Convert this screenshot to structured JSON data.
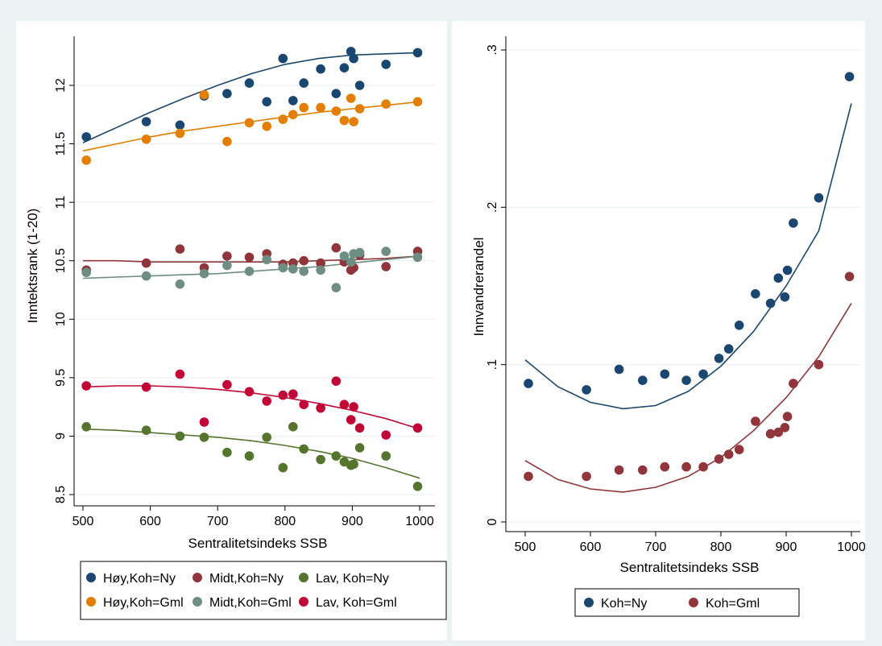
{
  "colors": {
    "hoy_ny": "#1a476f",
    "midt_ny": "#90353b",
    "lav_ny": "#55752f",
    "hoy_gml": "#e37e00",
    "midt_gml": "#6e8e84",
    "lav_gml": "#c10534",
    "share_ny": "#1a476f",
    "share_gml": "#90353b",
    "outer_bg": "#eaf2f3",
    "plot_bg": "#ffffff",
    "grid": "#eaf2f3"
  },
  "chart_data": [
    {
      "type": "scatter",
      "xlabel": "Sentralitetsindeks SSB",
      "ylabel": "Inntektsrank (1-20)",
      "xlim": [
        480,
        1020
      ],
      "ylim": [
        8.45,
        12.45
      ],
      "xticks": [
        500,
        600,
        700,
        800,
        900,
        1000
      ],
      "xtick_labels": [
        "500",
        "600",
        "700",
        "800",
        "900",
        "1000"
      ],
      "yticks": [
        8.5,
        9,
        9.5,
        10,
        10.5,
        11,
        11.5,
        12
      ],
      "ytick_labels": [
        "8.5",
        "9",
        "9.5",
        "10",
        "10.5",
        "11",
        "11.5",
        "12"
      ],
      "grid": true,
      "legend_position": "bottom",
      "legend_columns": 3,
      "series": [
        {
          "name": "Høy,Koh=Ny",
          "color_key": "hoy_ny",
          "points": [
            [
              505,
              11.56
            ],
            [
              594,
              11.69
            ],
            [
              644,
              11.66
            ],
            [
              680,
              11.91
            ],
            [
              714,
              11.93
            ],
            [
              747,
              12.02
            ],
            [
              773,
              11.86
            ],
            [
              797,
              12.23
            ],
            [
              812,
              11.87
            ],
            [
              828,
              12.02
            ],
            [
              853,
              12.14
            ],
            [
              876,
              11.93
            ],
            [
              888,
              12.15
            ],
            [
              898,
              12.29
            ],
            [
              902,
              12.23
            ],
            [
              911,
              12.0
            ],
            [
              950,
              12.18
            ],
            [
              997,
              12.28
            ]
          ],
          "fit": [
            11.51,
            11.64,
            11.77,
            11.89,
            12.0,
            12.1,
            12.18,
            12.23,
            12.26,
            12.27,
            12.28
          ]
        },
        {
          "name": "Midt,Koh=Ny",
          "color_key": "midt_ny",
          "points": [
            [
              505,
              10.42
            ],
            [
              594,
              10.48
            ],
            [
              644,
              10.6
            ],
            [
              680,
              10.44
            ],
            [
              714,
              10.54
            ],
            [
              747,
              10.53
            ],
            [
              773,
              10.56
            ],
            [
              797,
              10.47
            ],
            [
              812,
              10.48
            ],
            [
              828,
              10.5
            ],
            [
              853,
              10.48
            ],
            [
              876,
              10.61
            ],
            [
              888,
              10.49
            ],
            [
              898,
              10.42
            ],
            [
              902,
              10.44
            ],
            [
              911,
              10.55
            ],
            [
              950,
              10.45
            ],
            [
              997,
              10.58
            ]
          ],
          "fit": [
            10.5,
            10.5,
            10.49,
            10.49,
            10.49,
            10.49,
            10.49,
            10.5,
            10.51,
            10.52,
            10.54
          ]
        },
        {
          "name": "Lav, Koh=Ny",
          "color_key": "lav_ny",
          "points": [
            [
              505,
              9.08
            ],
            [
              594,
              9.05
            ],
            [
              644,
              9.0
            ],
            [
              680,
              8.99
            ],
            [
              714,
              8.86
            ],
            [
              747,
              8.83
            ],
            [
              773,
              8.99
            ],
            [
              797,
              8.73
            ],
            [
              812,
              9.08
            ],
            [
              828,
              8.89
            ],
            [
              853,
              8.8
            ],
            [
              876,
              8.83
            ],
            [
              888,
              8.78
            ],
            [
              898,
              8.75
            ],
            [
              902,
              8.76
            ],
            [
              911,
              8.9
            ],
            [
              950,
              8.83
            ],
            [
              997,
              8.57
            ]
          ],
          "fit": [
            9.06,
            9.05,
            9.03,
            9.01,
            8.99,
            8.96,
            8.92,
            8.87,
            8.81,
            8.73,
            8.64
          ]
        },
        {
          "name": "Høy,Koh=Gml",
          "color_key": "hoy_gml",
          "points": [
            [
              505,
              11.36
            ],
            [
              594,
              11.54
            ],
            [
              644,
              11.59
            ],
            [
              680,
              11.92
            ],
            [
              714,
              11.52
            ],
            [
              747,
              11.68
            ],
            [
              773,
              11.65
            ],
            [
              797,
              11.71
            ],
            [
              812,
              11.75
            ],
            [
              828,
              11.81
            ],
            [
              853,
              11.81
            ],
            [
              876,
              11.78
            ],
            [
              888,
              11.7
            ],
            [
              898,
              11.89
            ],
            [
              902,
              11.69
            ],
            [
              911,
              11.8
            ],
            [
              950,
              11.84
            ],
            [
              997,
              11.86
            ]
          ],
          "fit": [
            11.44,
            11.5,
            11.56,
            11.61,
            11.65,
            11.69,
            11.73,
            11.77,
            11.8,
            11.83,
            11.86
          ]
        },
        {
          "name": "Midt,Koh=Gml",
          "color_key": "midt_gml",
          "points": [
            [
              505,
              10.4
            ],
            [
              594,
              10.37
            ],
            [
              644,
              10.3
            ],
            [
              680,
              10.39
            ],
            [
              714,
              10.46
            ],
            [
              747,
              10.41
            ],
            [
              773,
              10.51
            ],
            [
              797,
              10.44
            ],
            [
              812,
              10.43
            ],
            [
              828,
              10.41
            ],
            [
              853,
              10.42
            ],
            [
              876,
              10.27
            ],
            [
              888,
              10.54
            ],
            [
              898,
              10.49
            ],
            [
              902,
              10.56
            ],
            [
              911,
              10.57
            ],
            [
              950,
              10.58
            ],
            [
              997,
              10.53
            ]
          ],
          "fit": [
            10.35,
            10.36,
            10.37,
            10.38,
            10.39,
            10.41,
            10.43,
            10.45,
            10.48,
            10.51,
            10.54
          ]
        },
        {
          "name": "Lav, Koh=Gml",
          "color_key": "lav_gml",
          "points": [
            [
              505,
              9.43
            ],
            [
              594,
              9.42
            ],
            [
              644,
              9.53
            ],
            [
              680,
              9.12
            ],
            [
              714,
              9.44
            ],
            [
              747,
              9.38
            ],
            [
              773,
              9.3
            ],
            [
              797,
              9.35
            ],
            [
              812,
              9.36
            ],
            [
              828,
              9.27
            ],
            [
              853,
              9.24
            ],
            [
              876,
              9.47
            ],
            [
              888,
              9.27
            ],
            [
              898,
              9.14
            ],
            [
              902,
              9.25
            ],
            [
              911,
              9.07
            ],
            [
              950,
              9.01
            ],
            [
              997,
              9.07
            ]
          ],
          "fit": [
            9.42,
            9.43,
            9.43,
            9.42,
            9.4,
            9.37,
            9.33,
            9.28,
            9.22,
            9.15,
            9.06
          ]
        }
      ]
    },
    {
      "type": "scatter",
      "xlabel": "Sentralitetsindeks SSB",
      "ylabel": "Innvandrerandel",
      "xlim": [
        480,
        1020
      ],
      "ylim": [
        -0.005,
        0.302
      ],
      "xticks": [
        500,
        600,
        700,
        800,
        900,
        1000
      ],
      "xtick_labels": [
        "500",
        "600",
        "700",
        "800",
        "900",
        "1000"
      ],
      "yticks": [
        0,
        0.1,
        0.2,
        0.3
      ],
      "ytick_labels": [
        "0",
        ".1",
        ".2",
        ".3"
      ],
      "grid": true,
      "legend_position": "bottom",
      "legend_columns": 2,
      "series": [
        {
          "name": "Koh=Ny",
          "color_key": "share_ny",
          "points": [
            [
              505,
              0.088
            ],
            [
              594,
              0.084
            ],
            [
              644,
              0.097
            ],
            [
              680,
              0.09
            ],
            [
              714,
              0.094
            ],
            [
              747,
              0.09
            ],
            [
              773,
              0.094
            ],
            [
              797,
              0.104
            ],
            [
              812,
              0.11
            ],
            [
              828,
              0.125
            ],
            [
              853,
              0.145
            ],
            [
              876,
              0.139
            ],
            [
              888,
              0.155
            ],
            [
              898,
              0.143
            ],
            [
              902,
              0.16
            ],
            [
              911,
              0.19
            ],
            [
              950,
              0.206
            ],
            [
              997,
              0.283
            ]
          ],
          "fit": [
            0.103,
            0.086,
            0.076,
            0.072,
            0.074,
            0.083,
            0.099,
            0.121,
            0.15,
            0.185,
            0.266
          ]
        },
        {
          "name": "Koh=Gml",
          "color_key": "share_gml",
          "points": [
            [
              505,
              0.029
            ],
            [
              594,
              0.029
            ],
            [
              644,
              0.033
            ],
            [
              680,
              0.033
            ],
            [
              714,
              0.035
            ],
            [
              747,
              0.035
            ],
            [
              773,
              0.035
            ],
            [
              797,
              0.04
            ],
            [
              812,
              0.043
            ],
            [
              828,
              0.046
            ],
            [
              853,
              0.064
            ],
            [
              876,
              0.056
            ],
            [
              888,
              0.057
            ],
            [
              898,
              0.06
            ],
            [
              902,
              0.067
            ],
            [
              911,
              0.088
            ],
            [
              950,
              0.1
            ],
            [
              997,
              0.156
            ]
          ],
          "fit": [
            0.039,
            0.027,
            0.021,
            0.019,
            0.022,
            0.029,
            0.041,
            0.058,
            0.079,
            0.105,
            0.139
          ]
        }
      ]
    }
  ]
}
